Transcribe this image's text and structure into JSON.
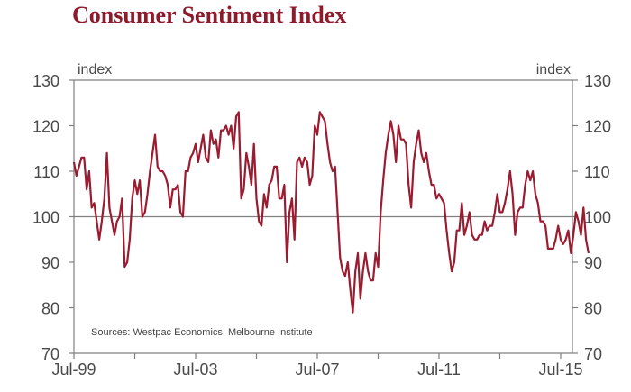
{
  "chart_data": {
    "type": "line",
    "title": "Consumer Sentiment Index",
    "ylabel_left": "index",
    "ylabel_right": "index",
    "xlabel": "",
    "ylim": [
      70,
      130
    ],
    "yticks": [
      70,
      80,
      90,
      100,
      110,
      120,
      130
    ],
    "xticks": [
      "Jul-99",
      "Jul-03",
      "Jul-07",
      "Jul-11",
      "Jul-15"
    ],
    "x_start": "Jul-99",
    "x_end": "Jul-15",
    "reference_line": 100,
    "source": "Sources: Westpac Economics, Melbourne Institute",
    "colors": {
      "line": "#9b1b30",
      "axis": "#7f7f7f",
      "title": "#8e1b2b"
    },
    "series": [
      {
        "name": "Consumer Sentiment Index",
        "frequency": "monthly",
        "start": "Jul-99",
        "values": [
          112,
          109,
          111,
          113,
          113,
          106,
          110,
          102,
          103,
          99,
          95,
          99,
          104,
          114,
          102,
          99,
          96,
          99,
          100,
          104,
          89,
          90,
          95,
          104,
          108,
          105,
          108,
          100,
          101,
          105,
          110,
          114,
          118,
          111,
          110,
          110,
          109,
          107,
          102,
          106,
          106,
          107,
          101,
          100,
          110,
          110,
          113,
          114,
          116,
          112,
          115,
          118,
          113,
          112,
          119,
          116,
          117,
          113,
          119,
          119,
          120,
          118,
          120,
          115,
          122,
          123,
          104,
          106,
          114,
          111,
          107,
          116,
          104,
          99,
          98,
          105,
          102,
          107,
          108,
          111,
          111,
          104,
          104,
          107,
          90,
          101,
          104,
          95,
          112,
          113,
          111,
          113,
          112,
          107,
          109,
          120,
          118,
          123,
          122,
          121,
          116,
          112,
          110,
          111,
          101,
          91,
          88,
          87,
          90,
          84,
          79,
          88,
          92,
          82,
          88,
          92,
          88,
          86,
          86,
          92,
          89,
          101,
          108,
          114,
          118,
          121,
          118,
          112,
          120,
          117,
          117,
          116,
          107,
          102,
          112,
          116,
          119,
          114,
          112,
          114,
          110,
          107,
          107,
          104,
          105,
          104,
          103,
          97,
          92,
          88,
          90,
          97,
          97,
          103,
          96,
          98,
          101,
          96,
          95,
          95,
          96,
          96,
          99,
          97,
          98,
          98,
          101,
          105,
          101,
          101,
          103,
          106,
          110,
          105,
          96,
          101,
          102,
          102,
          107,
          110,
          108,
          110,
          105,
          103,
          99,
          99,
          98,
          93,
          93,
          93,
          95,
          98,
          95,
          94,
          95,
          97,
          92,
          96,
          101,
          99,
          96,
          102,
          95,
          92
        ]
      }
    ]
  }
}
